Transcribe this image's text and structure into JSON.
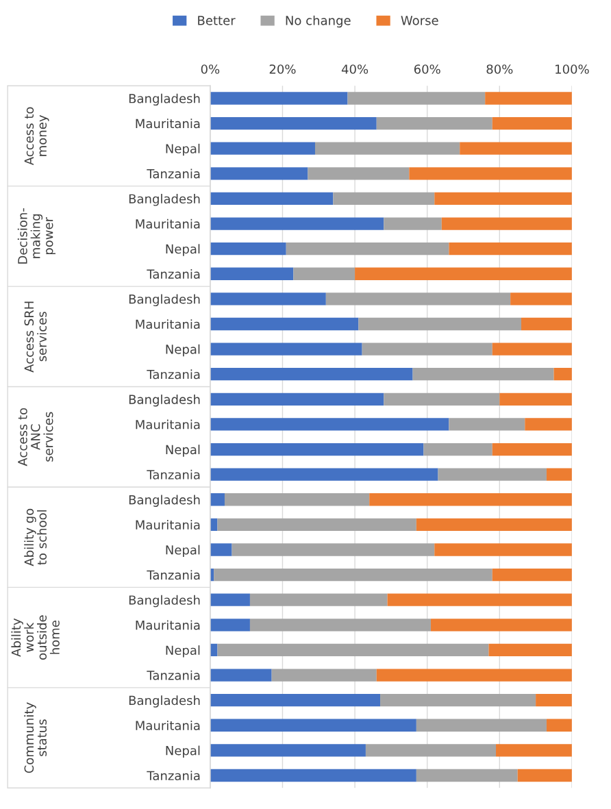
{
  "chart_data": {
    "type": "bar",
    "orientation": "horizontal",
    "stacked": true,
    "categories": [
      "Bangladesh",
      "Mauritania",
      "Nepal",
      "Tanzania",
      "Bangladesh",
      "Mauritania",
      "Nepal",
      "Tanzania",
      "Bangladesh",
      "Mauritania",
      "Nepal",
      "Tanzania",
      "Bangladesh",
      "Mauritania",
      "Nepal",
      "Tanzania",
      "Bangladesh",
      "Mauritania",
      "Nepal",
      "Tanzania",
      "Bangladesh",
      "Mauritania",
      "Nepal",
      "Tanzania",
      "Bangladesh",
      "Mauritania",
      "Nepal",
      "Tanzania"
    ],
    "series": [
      {
        "name": "Better",
        "color": "#4472c4",
        "values": [
          38,
          46,
          29,
          27,
          34,
          48,
          21,
          23,
          32,
          41,
          42,
          56,
          48,
          66,
          59,
          63,
          4,
          2,
          6,
          1,
          11,
          11,
          2,
          17,
          47,
          57,
          43,
          57
        ]
      },
      {
        "name": "No change",
        "color": "#a5a5a5",
        "values": [
          38,
          32,
          40,
          28,
          28,
          16,
          45,
          17,
          51,
          45,
          36,
          39,
          32,
          21,
          19,
          30,
          40,
          55,
          56,
          77,
          38,
          50,
          75,
          29,
          43,
          36,
          36,
          28
        ]
      },
      {
        "name": "Worse",
        "color": "#ed7d31",
        "values": [
          24,
          22,
          31,
          45,
          38,
          36,
          34,
          60,
          17,
          14,
          22,
          5,
          20,
          13,
          22,
          7,
          56,
          43,
          38,
          22,
          51,
          39,
          23,
          54,
          10,
          7,
          21,
          15
        ]
      }
    ],
    "annotations": [
      "Access to money",
      "Decision-making power",
      "Access SRH services",
      "Access to ANC services",
      "Ability go to school",
      "Ability work outside home",
      "Community status"
    ],
    "xlim": [
      0,
      100
    ],
    "xticks": [
      {
        "value": 0,
        "label": "0%"
      },
      {
        "value": 20,
        "label": "20%"
      },
      {
        "value": 40,
        "label": "40%"
      },
      {
        "value": 60,
        "label": "60%"
      },
      {
        "value": 80,
        "label": "80%"
      },
      {
        "value": 100,
        "label": "100%"
      }
    ],
    "grid": "x",
    "legend": "top"
  }
}
